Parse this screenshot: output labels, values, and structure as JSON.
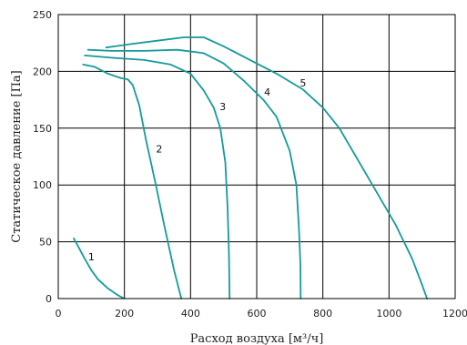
{
  "chart_data": {
    "type": "line",
    "xlabel": "Расход воздуха [м³/ч]",
    "ylabel": "Статическое давление [Па]",
    "xlim": [
      0,
      1200
    ],
    "ylim": [
      0,
      250
    ],
    "x_ticks": [
      "0",
      "200",
      "400",
      "600",
      "800",
      "1000",
      "1200"
    ],
    "y_ticks": [
      "0",
      "50",
      "100",
      "150",
      "200",
      "250"
    ],
    "grid": true,
    "line_color": "#169a9a",
    "series": [
      {
        "name": "1",
        "label_at": [
          100,
          37
        ],
        "points": [
          [
            47,
            53
          ],
          [
            60,
            46
          ],
          [
            80,
            35
          ],
          [
            100,
            25
          ],
          [
            120,
            17
          ],
          [
            150,
            9
          ],
          [
            180,
            3
          ],
          [
            200,
            0
          ]
        ]
      },
      {
        "name": "2",
        "label_at": [
          305,
          132
        ],
        "points": [
          [
            75,
            206
          ],
          [
            110,
            204
          ],
          [
            150,
            198
          ],
          [
            190,
            194
          ],
          [
            210,
            193
          ],
          [
            225,
            188
          ],
          [
            245,
            170
          ],
          [
            265,
            140
          ],
          [
            295,
            100
          ],
          [
            320,
            65
          ],
          [
            350,
            25
          ],
          [
            372,
            0
          ]
        ]
      },
      {
        "name": "3",
        "label_at": [
          497,
          169
        ],
        "points": [
          [
            80,
            214
          ],
          [
            160,
            212
          ],
          [
            260,
            210
          ],
          [
            340,
            206
          ],
          [
            400,
            198
          ],
          [
            440,
            183
          ],
          [
            470,
            168
          ],
          [
            490,
            150
          ],
          [
            505,
            120
          ],
          [
            512,
            80
          ],
          [
            516,
            40
          ],
          [
            518,
            0
          ]
        ]
      },
      {
        "name": "4",
        "label_at": [
          632,
          182
        ],
        "points": [
          [
            90,
            219
          ],
          [
            160,
            218
          ],
          [
            260,
            218
          ],
          [
            360,
            219
          ],
          [
            440,
            216
          ],
          [
            500,
            207
          ],
          [
            560,
            192
          ],
          [
            620,
            175
          ],
          [
            660,
            160
          ],
          [
            700,
            130
          ],
          [
            720,
            100
          ],
          [
            728,
            60
          ],
          [
            732,
            30
          ],
          [
            733,
            0
          ]
        ]
      },
      {
        "name": "5",
        "label_at": [
          740,
          190
        ],
        "points": [
          [
            145,
            221
          ],
          [
            220,
            224
          ],
          [
            300,
            227
          ],
          [
            380,
            230
          ],
          [
            440,
            230
          ],
          [
            500,
            222
          ],
          [
            580,
            210
          ],
          [
            660,
            198
          ],
          [
            740,
            184
          ],
          [
            800,
            168
          ],
          [
            850,
            150
          ],
          [
            900,
            125
          ],
          [
            960,
            95
          ],
          [
            1020,
            65
          ],
          [
            1070,
            35
          ],
          [
            1100,
            12
          ],
          [
            1115,
            0
          ]
        ]
      }
    ]
  }
}
